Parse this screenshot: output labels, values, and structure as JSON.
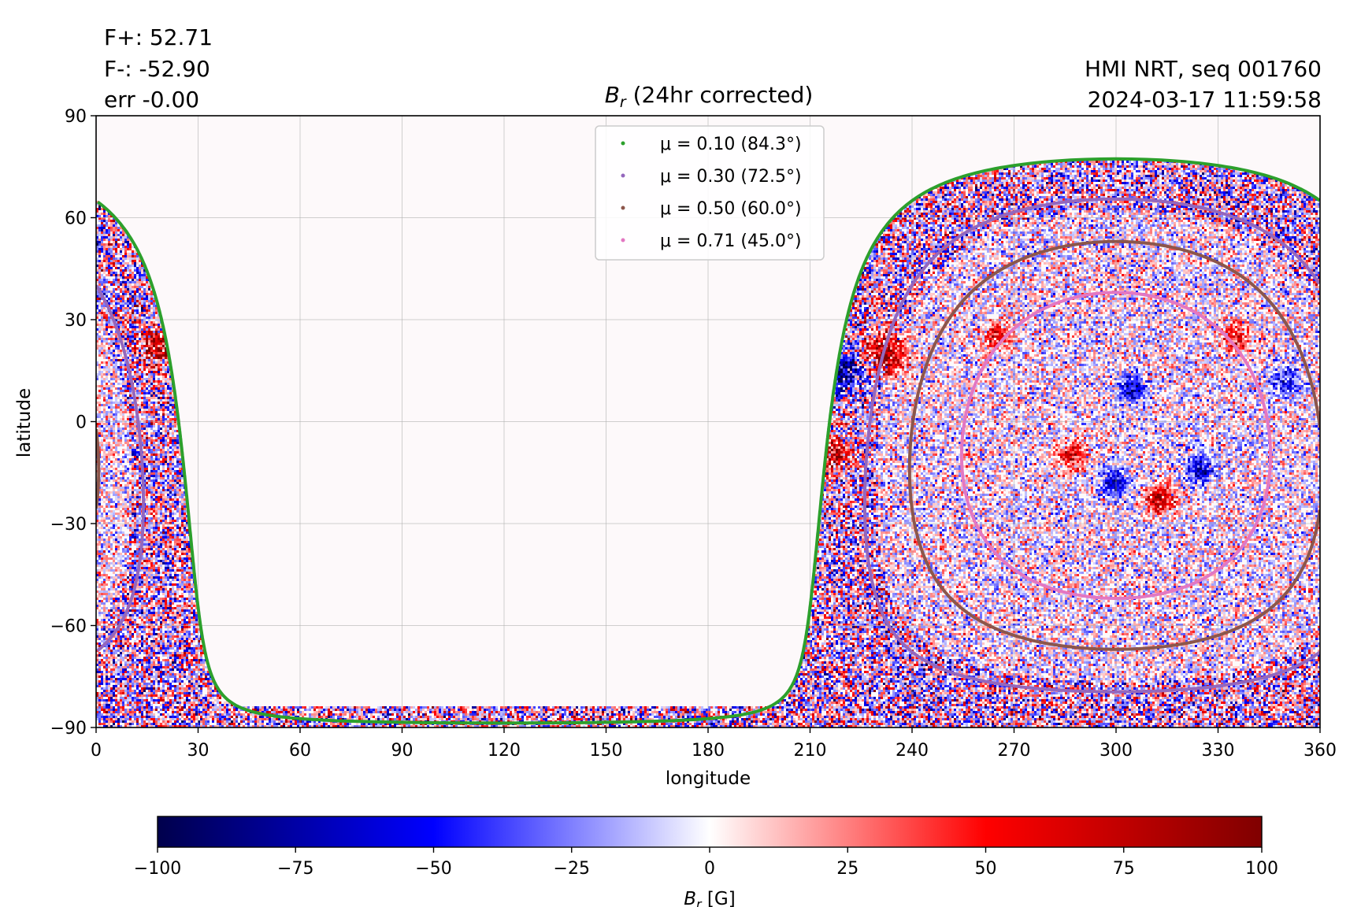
{
  "header": {
    "flux_pos": "F+: 52.71",
    "flux_neg": "F-: -52.90",
    "err": "err -0.00",
    "source": "HMI NRT, seq 001760",
    "timestamp": "2024-03-17 11:59:58"
  },
  "chart_data": {
    "type": "heatmap",
    "title": "B_r (24hr corrected)",
    "title_symbol": "B",
    "title_subscript": "r",
    "title_rest": " (24hr corrected)",
    "xlabel": "longitude",
    "ylabel": "latitude",
    "xlim": [
      0,
      360
    ],
    "ylim": [
      -90,
      90
    ],
    "xticks": [
      0,
      30,
      60,
      90,
      120,
      150,
      180,
      210,
      240,
      270,
      300,
      330,
      360
    ],
    "yticks": [
      -90,
      -60,
      -30,
      0,
      30,
      60,
      90
    ],
    "ytick_labels": [
      "−90",
      "−60",
      "−30",
      "0",
      "30",
      "60",
      "90"
    ],
    "grid": true,
    "legend_placement": "upper-center",
    "disk_center": {
      "lon": 300,
      "lat": -7
    },
    "series": [
      {
        "name": "μ = 0.10 (84.3°)",
        "mu": 0.1,
        "angle_deg": 84.3,
        "color": "#2ca02c"
      },
      {
        "name": "μ = 0.30 (72.5°)",
        "mu": 0.3,
        "angle_deg": 72.5,
        "color": "#9467bd"
      },
      {
        "name": "μ = 0.50 (60.0°)",
        "mu": 0.5,
        "angle_deg": 60.0,
        "color": "#8c564b"
      },
      {
        "name": "μ = 0.71 (45.0°)",
        "mu": 0.71,
        "angle_deg": 45.0,
        "color": "#e377c2"
      }
    ],
    "colorbar": {
      "label_symbol": "B",
      "label_subscript": "r",
      "label_rest": " [G]",
      "range": [
        -100,
        100
      ],
      "ticks": [
        -100,
        -75,
        -50,
        -25,
        0,
        25,
        50,
        75,
        100
      ],
      "tick_labels": [
        "−100",
        "−75",
        "−50",
        "−25",
        "0",
        "25",
        "50",
        "75",
        "100"
      ],
      "colormap": "seismic",
      "colors": [
        "#00004c",
        "#0000ff",
        "#ffffff",
        "#ff0000",
        "#800000"
      ]
    }
  }
}
